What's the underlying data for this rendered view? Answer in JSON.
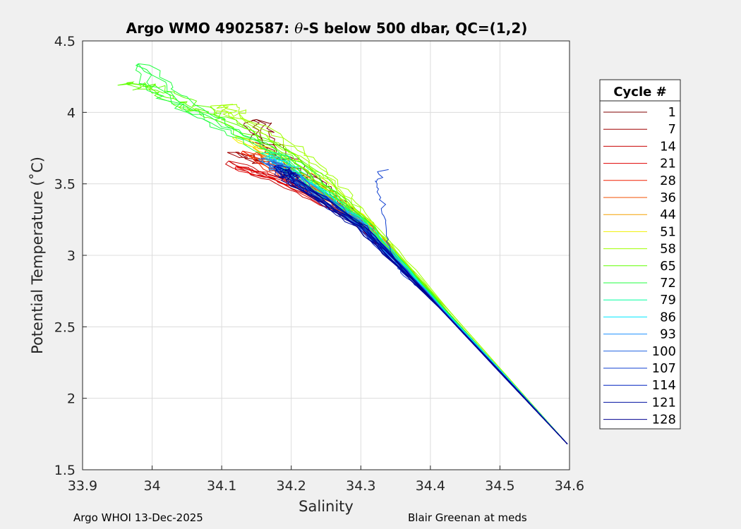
{
  "chart_data": {
    "type": "line",
    "title_prefix": "Argo WMO 4902587: ",
    "title_theta": "θ",
    "title_suffix": "-S below 500 dbar,  QC=(1,2)",
    "xlabel": "Salinity",
    "ylabel": "Potential Temperature (˚C)",
    "xlim": [
      33.9,
      34.6
    ],
    "ylim": [
      1.5,
      4.5
    ],
    "xticks": [
      "33.9",
      "34",
      "34.1",
      "34.2",
      "34.3",
      "34.4",
      "34.5",
      "34.6"
    ],
    "yticks": [
      "1.5",
      "2",
      "2.5",
      "3",
      "3.5",
      "4",
      "4.5"
    ],
    "grid": true,
    "legend": {
      "title": "Cycle #",
      "placement": "outside-right"
    },
    "series": [
      {
        "name": "1",
        "color": "#800000",
        "points": [
          [
            34.597,
            1.68
          ],
          [
            34.5,
            2.2
          ],
          [
            34.4,
            2.72
          ],
          [
            34.36,
            2.95
          ],
          [
            34.3,
            3.2
          ],
          [
            34.25,
            3.47
          ],
          [
            34.2,
            3.65
          ],
          [
            34.16,
            3.8
          ],
          [
            34.15,
            3.95
          ]
        ]
      },
      {
        "name": "7",
        "color": "#a00000",
        "points": [
          [
            34.597,
            1.68
          ],
          [
            34.5,
            2.2
          ],
          [
            34.4,
            2.74
          ],
          [
            34.3,
            3.25
          ],
          [
            34.22,
            3.52
          ],
          [
            34.16,
            3.65
          ],
          [
            34.12,
            3.72
          ]
        ]
      },
      {
        "name": "14",
        "color": "#c80000",
        "points": [
          [
            34.597,
            1.68
          ],
          [
            34.5,
            2.19
          ],
          [
            34.4,
            2.73
          ],
          [
            34.3,
            3.22
          ],
          [
            34.2,
            3.48
          ],
          [
            34.11,
            3.66
          ]
        ]
      },
      {
        "name": "21",
        "color": "#e00000",
        "points": [
          [
            34.597,
            1.68
          ],
          [
            34.5,
            2.19
          ],
          [
            34.4,
            2.73
          ],
          [
            34.3,
            3.23
          ],
          [
            34.2,
            3.5
          ],
          [
            34.12,
            3.62
          ]
        ]
      },
      {
        "name": "28",
        "color": "#f02000",
        "points": [
          [
            34.597,
            1.68
          ],
          [
            34.5,
            2.19
          ],
          [
            34.4,
            2.72
          ],
          [
            34.3,
            3.24
          ],
          [
            34.2,
            3.53
          ],
          [
            34.13,
            3.73
          ]
        ]
      },
      {
        "name": "36",
        "color": "#f05000",
        "points": [
          [
            34.597,
            1.68
          ],
          [
            34.5,
            2.19
          ],
          [
            34.4,
            2.72
          ],
          [
            34.3,
            3.25
          ],
          [
            34.2,
            3.55
          ],
          [
            34.15,
            3.72
          ]
        ]
      },
      {
        "name": "44",
        "color": "#f5a000",
        "points": [
          [
            34.597,
            1.68
          ],
          [
            34.5,
            2.19
          ],
          [
            34.4,
            2.72
          ],
          [
            34.3,
            3.26
          ],
          [
            34.2,
            3.6
          ],
          [
            34.15,
            3.77
          ]
        ]
      },
      {
        "name": "51",
        "color": "#f0f000",
        "points": [
          [
            34.597,
            1.68
          ],
          [
            34.5,
            2.2
          ],
          [
            34.4,
            2.73
          ],
          [
            34.3,
            3.28
          ],
          [
            34.2,
            3.66
          ],
          [
            34.12,
            3.83
          ]
        ]
      },
      {
        "name": "58",
        "color": "#a0ff00",
        "points": [
          [
            34.597,
            1.68
          ],
          [
            34.5,
            2.21
          ],
          [
            34.4,
            2.76
          ],
          [
            34.3,
            3.3
          ],
          [
            34.25,
            3.55
          ],
          [
            34.2,
            3.75
          ],
          [
            34.12,
            3.98
          ],
          [
            34.1,
            4.05
          ]
        ]
      },
      {
        "name": "65",
        "color": "#60ff00",
        "points": [
          [
            34.597,
            1.68
          ],
          [
            34.5,
            2.2
          ],
          [
            34.4,
            2.74
          ],
          [
            34.3,
            3.27
          ],
          [
            34.2,
            3.7
          ],
          [
            34.1,
            3.95
          ],
          [
            34.05,
            4.05
          ],
          [
            34.0,
            4.17
          ],
          [
            33.97,
            4.2
          ]
        ]
      },
      {
        "name": "72",
        "color": "#20ff40",
        "points": [
          [
            34.597,
            1.68
          ],
          [
            34.5,
            2.2
          ],
          [
            34.4,
            2.73
          ],
          [
            34.3,
            3.25
          ],
          [
            34.2,
            3.65
          ],
          [
            34.1,
            3.9
          ],
          [
            34.03,
            4.1
          ],
          [
            33.98,
            4.34
          ]
        ]
      },
      {
        "name": "79",
        "color": "#00ffa0",
        "points": [
          [
            34.597,
            1.68
          ],
          [
            34.5,
            2.2
          ],
          [
            34.4,
            2.72
          ],
          [
            34.3,
            3.24
          ],
          [
            34.2,
            3.6
          ],
          [
            34.17,
            3.72
          ]
        ]
      },
      {
        "name": "86",
        "color": "#00e8ff",
        "points": [
          [
            34.597,
            1.68
          ],
          [
            34.5,
            2.2
          ],
          [
            34.4,
            2.72
          ],
          [
            34.3,
            3.23
          ],
          [
            34.2,
            3.58
          ],
          [
            34.17,
            3.7
          ]
        ]
      },
      {
        "name": "93",
        "color": "#1e90ff",
        "points": [
          [
            34.597,
            1.68
          ],
          [
            34.5,
            2.19
          ],
          [
            34.4,
            2.71
          ],
          [
            34.3,
            3.22
          ],
          [
            34.2,
            3.56
          ],
          [
            34.16,
            3.68
          ]
        ]
      },
      {
        "name": "100",
        "color": "#1e60e0",
        "points": [
          [
            34.597,
            1.68
          ],
          [
            34.5,
            2.19
          ],
          [
            34.4,
            2.71
          ],
          [
            34.3,
            3.21
          ],
          [
            34.2,
            3.55
          ],
          [
            34.17,
            3.66
          ]
        ]
      },
      {
        "name": "107",
        "color": "#1040d0",
        "points": [
          [
            34.597,
            1.68
          ],
          [
            34.5,
            2.19
          ],
          [
            34.4,
            2.71
          ],
          [
            34.36,
            2.88
          ],
          [
            34.35,
            3.0
          ],
          [
            34.34,
            3.15
          ],
          [
            34.34,
            3.35
          ],
          [
            34.335,
            3.5
          ],
          [
            34.34,
            3.6
          ]
        ]
      },
      {
        "name": "114",
        "color": "#0020c0",
        "points": [
          [
            34.597,
            1.68
          ],
          [
            34.5,
            2.19
          ],
          [
            34.4,
            2.7
          ],
          [
            34.3,
            3.2
          ],
          [
            34.2,
            3.54
          ],
          [
            34.18,
            3.63
          ]
        ]
      },
      {
        "name": "121",
        "color": "#0010a0",
        "points": [
          [
            34.597,
            1.68
          ],
          [
            34.5,
            2.19
          ],
          [
            34.4,
            2.7
          ],
          [
            34.3,
            3.2
          ],
          [
            34.2,
            3.53
          ],
          [
            34.18,
            3.62
          ]
        ]
      },
      {
        "name": "128",
        "color": "#000090",
        "points": [
          [
            34.597,
            1.68
          ],
          [
            34.5,
            2.18
          ],
          [
            34.4,
            2.7
          ],
          [
            34.3,
            3.2
          ],
          [
            34.2,
            3.52
          ],
          [
            34.19,
            3.6
          ]
        ]
      }
    ]
  },
  "footer": {
    "left": "Argo WHOI 13-Dec-2025",
    "right": "Blair Greenan at meds"
  }
}
